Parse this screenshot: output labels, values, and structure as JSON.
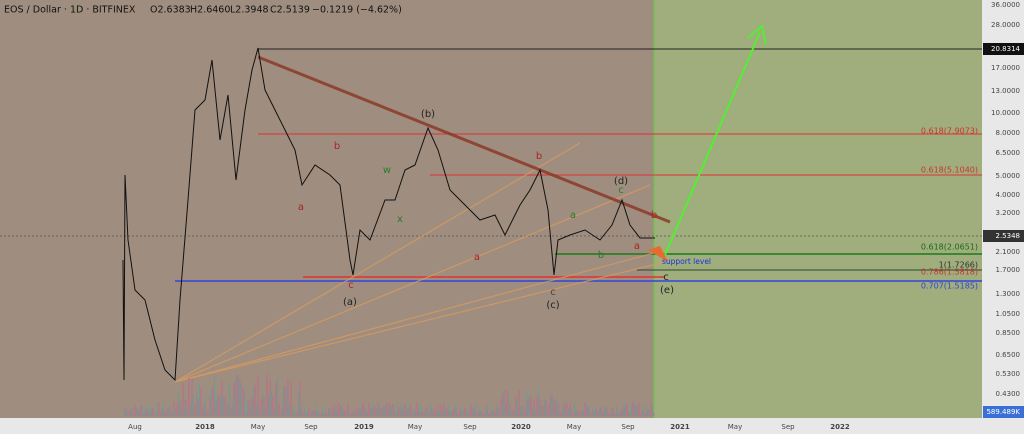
{
  "header": {
    "symbol": "EOS / Dollar · 1D · BITFINEX",
    "open": "O2.6383",
    "high": "H2.6460",
    "low": "L2.3948",
    "close": "C2.5139",
    "change": "−0.1219 (−4.62%)"
  },
  "price_axis": [
    "36.0000",
    "28.0000",
    "20.8314",
    "17.0000",
    "13.0000",
    "10.0000",
    "8.0000",
    "6.5000",
    "5.0000",
    "4.0000",
    "3.2000",
    "2.5348",
    "2.1000",
    "1.7000",
    "1.3000",
    "1.0500",
    "0.8500",
    "0.6500",
    "0.5300",
    "0.4300",
    "589.489K"
  ],
  "time_axis": [
    "Aug",
    "2018",
    "May",
    "Sep",
    "2019",
    "May",
    "Sep",
    "2020",
    "May",
    "Sep",
    "2021",
    "May",
    "Sep",
    "2022"
  ],
  "wave_labels": [
    "(b)",
    "b",
    "w",
    "x",
    "a",
    "c",
    "(a)",
    "b",
    "(d)",
    "c",
    "a",
    "a",
    "b",
    "c",
    "(c)",
    "b",
    "a",
    "c",
    "(e)"
  ],
  "support_label": "support level",
  "fib_labels": [
    "0.618(7.9073)",
    "0.618(5.1040)",
    "0.618(2.0651)",
    "1(1.7266)",
    "0.786(1.5818)",
    "0.707(1.5185)"
  ]
}
